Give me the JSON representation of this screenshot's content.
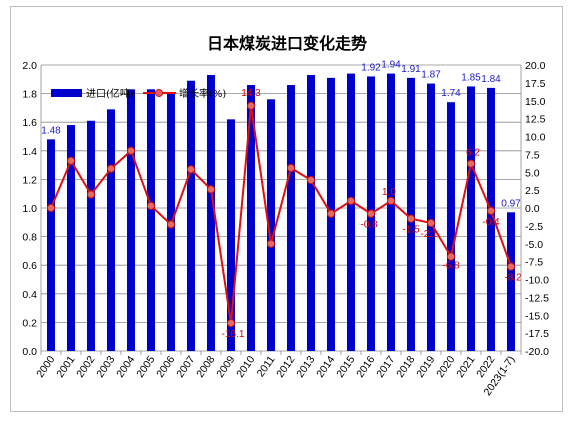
{
  "chart_data": {
    "type": "bar+line",
    "title": "日本煤炭进口变化走势",
    "categories": [
      "2000",
      "2001",
      "2002",
      "2003",
      "2004",
      "2005",
      "2006",
      "2007",
      "2008",
      "2009",
      "2010",
      "2011",
      "2012",
      "2013",
      "2014",
      "2015",
      "2016",
      "2017",
      "2018",
      "2019",
      "2020",
      "2021",
      "2022",
      "2023(1-7)"
    ],
    "series": [
      {
        "name": "进口(亿吨)",
        "type": "bar",
        "axis": "left",
        "color": "#0000cc",
        "values": [
          1.48,
          1.58,
          1.61,
          1.69,
          1.83,
          1.83,
          1.8,
          1.89,
          1.93,
          1.62,
          1.86,
          1.76,
          1.86,
          1.93,
          1.91,
          1.94,
          1.92,
          1.94,
          1.91,
          1.87,
          1.74,
          1.85,
          1.84,
          0.97
        ],
        "labels": [
          {
            "i": 0,
            "text": "1.48"
          },
          {
            "i": 16,
            "text": "1.92"
          },
          {
            "i": 17,
            "text": "1.94"
          },
          {
            "i": 18,
            "text": "1.91"
          },
          {
            "i": 19,
            "text": "1.87"
          },
          {
            "i": 20,
            "text": "1.74"
          },
          {
            "i": 21,
            "text": "1.85"
          },
          {
            "i": 22,
            "text": "1.84"
          },
          {
            "i": 23,
            "text": "0.97"
          }
        ]
      },
      {
        "name": "增长率(%)",
        "type": "line",
        "axis": "right",
        "color": "#e01010",
        "values": [
          0.0,
          6.6,
          1.9,
          5.5,
          8.0,
          0.3,
          -2.3,
          5.4,
          2.6,
          -16.1,
          14.3,
          -5.0,
          5.6,
          3.9,
          -0.8,
          1.0,
          -0.8,
          1.0,
          -1.5,
          -2.1,
          -6.8,
          6.2,
          -0.4,
          -8.2
        ],
        "labels": [
          {
            "i": 9,
            "text": "-16.1",
            "dx": 2,
            "dy": 14
          },
          {
            "i": 10,
            "text": "14.3",
            "dx": 0,
            "dy": -10
          },
          {
            "i": 16,
            "text": "-0.8",
            "dx": -2,
            "dy": 14
          },
          {
            "i": 17,
            "text": "1.0",
            "dx": -2,
            "dy": -6
          },
          {
            "i": 18,
            "text": "-1.5",
            "dx": 0,
            "dy": 14
          },
          {
            "i": 19,
            "text": "-2.1",
            "dx": -2,
            "dy": 14
          },
          {
            "i": 20,
            "text": "-6.8",
            "dx": 0,
            "dy": 12
          },
          {
            "i": 21,
            "text": "6.2",
            "dx": 2,
            "dy": -8
          },
          {
            "i": 22,
            "text": "-0.4",
            "dx": 0,
            "dy": 14
          },
          {
            "i": 23,
            "text": "-8.2",
            "dx": 2,
            "dy": 14
          }
        ]
      }
    ],
    "y_left": {
      "min": 0.0,
      "max": 2.0,
      "step": 0.2
    },
    "y_right": {
      "min": -20.0,
      "max": 20.0,
      "step": 2.5
    },
    "grid": true,
    "legend_position": "top-left"
  }
}
